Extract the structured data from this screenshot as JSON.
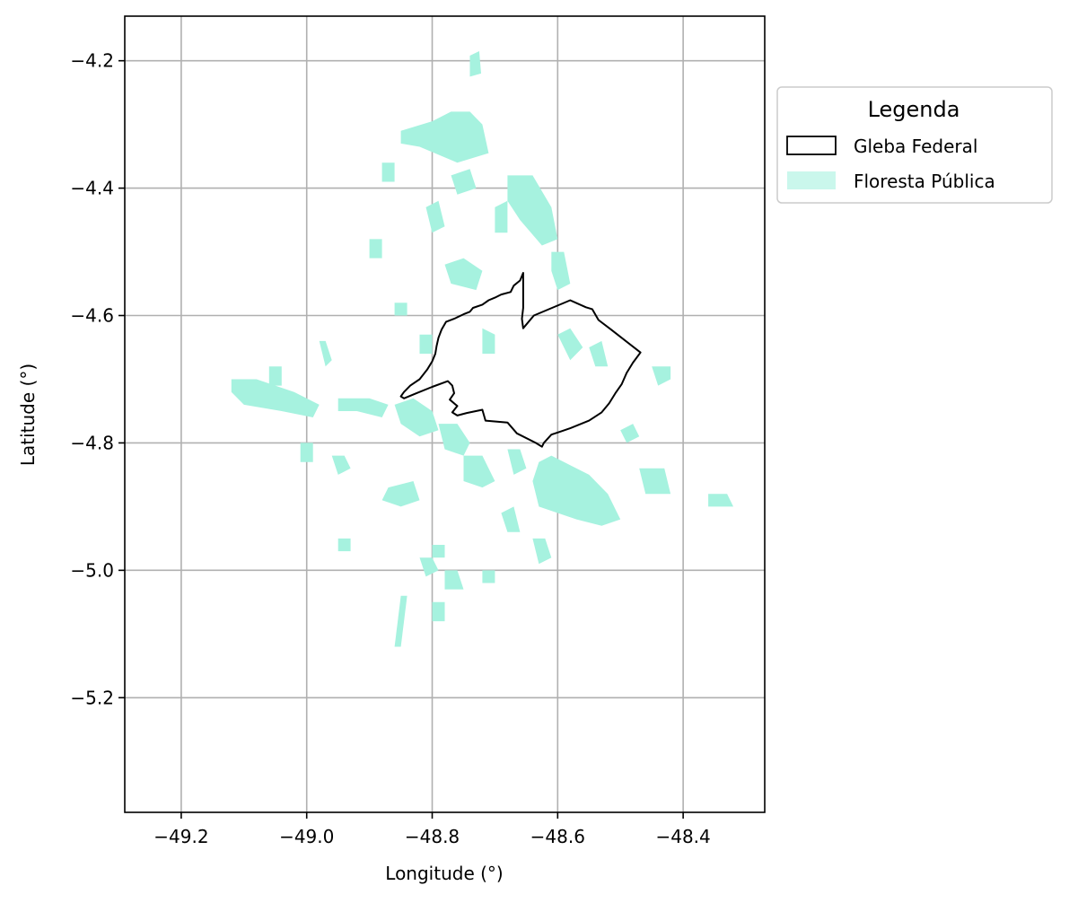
{
  "chart_data": {
    "type": "map",
    "xlabel": "Longitude (°)",
    "ylabel": "Latitude (°)",
    "xlim": [
      -49.29,
      -48.27
    ],
    "ylim": [
      -5.38,
      -4.13
    ],
    "xticks": [
      -49.2,
      -49.0,
      -48.8,
      -48.6,
      -48.4
    ],
    "yticks": [
      -4.2,
      -4.4,
      -4.6,
      -4.8,
      -5.0,
      -5.2
    ],
    "grid": true,
    "legend": {
      "title": "Legenda",
      "placement": "outside-right-top",
      "entries": [
        {
          "label": "Gleba Federal",
          "style": "outline",
          "color": "#000000"
        },
        {
          "label": "Floresta Pública",
          "style": "fill",
          "color": "#a6f2df"
        }
      ]
    },
    "series": [
      {
        "name": "Gleba Federal",
        "kind": "polygon-outline",
        "coordinates": [
          [
            -48.655,
            -4.533
          ],
          [
            -48.66,
            -4.545
          ],
          [
            -48.67,
            -4.553
          ],
          [
            -48.675,
            -4.563
          ],
          [
            -48.69,
            -4.567
          ],
          [
            -48.7,
            -4.572
          ],
          [
            -48.71,
            -4.576
          ],
          [
            -48.72,
            -4.583
          ],
          [
            -48.735,
            -4.588
          ],
          [
            -48.74,
            -4.594
          ],
          [
            -48.75,
            -4.598
          ],
          [
            -48.765,
            -4.605
          ],
          [
            -48.778,
            -4.61
          ],
          [
            -48.785,
            -4.622
          ],
          [
            -48.79,
            -4.635
          ],
          [
            -48.793,
            -4.648
          ],
          [
            -48.795,
            -4.66
          ],
          [
            -48.8,
            -4.672
          ],
          [
            -48.808,
            -4.685
          ],
          [
            -48.82,
            -4.7
          ],
          [
            -48.835,
            -4.71
          ],
          [
            -48.845,
            -4.72
          ],
          [
            -48.85,
            -4.727
          ],
          [
            -48.845,
            -4.73
          ],
          [
            -48.825,
            -4.722
          ],
          [
            -48.8,
            -4.712
          ],
          [
            -48.775,
            -4.703
          ],
          [
            -48.768,
            -4.71
          ],
          [
            -48.765,
            -4.722
          ],
          [
            -48.772,
            -4.732
          ],
          [
            -48.76,
            -4.742
          ],
          [
            -48.768,
            -4.752
          ],
          [
            -48.76,
            -4.757
          ],
          [
            -48.745,
            -4.753
          ],
          [
            -48.72,
            -4.748
          ],
          [
            -48.715,
            -4.765
          ],
          [
            -48.68,
            -4.768
          ],
          [
            -48.665,
            -4.785
          ],
          [
            -48.635,
            -4.8
          ],
          [
            -48.625,
            -4.806
          ],
          [
            -48.622,
            -4.8
          ],
          [
            -48.61,
            -4.787
          ],
          [
            -48.595,
            -4.782
          ],
          [
            -48.58,
            -4.777
          ],
          [
            -48.55,
            -4.765
          ],
          [
            -48.53,
            -4.752
          ],
          [
            -48.518,
            -4.738
          ],
          [
            -48.508,
            -4.722
          ],
          [
            -48.498,
            -4.708
          ],
          [
            -48.49,
            -4.69
          ],
          [
            -48.48,
            -4.674
          ],
          [
            -48.468,
            -4.658
          ],
          [
            -48.515,
            -4.622
          ],
          [
            -48.535,
            -4.607
          ],
          [
            -48.545,
            -4.59
          ],
          [
            -48.555,
            -4.587
          ],
          [
            -48.58,
            -4.576
          ],
          [
            -48.638,
            -4.6
          ],
          [
            -48.655,
            -4.62
          ],
          [
            -48.657,
            -4.605
          ],
          [
            -48.655,
            -4.588
          ],
          [
            -48.655,
            -4.533
          ]
        ]
      },
      {
        "name": "Floresta Pública",
        "kind": "polygon-fill",
        "polygons": [
          [
            [
              -48.74,
              -4.192
            ],
            [
              -48.725,
              -4.185
            ],
            [
              -48.722,
              -4.22
            ],
            [
              -48.74,
              -4.225
            ]
          ],
          [
            [
              -48.85,
              -4.31
            ],
            [
              -48.8,
              -4.295
            ],
            [
              -48.77,
              -4.28
            ],
            [
              -48.74,
              -4.28
            ],
            [
              -48.72,
              -4.3
            ],
            [
              -48.71,
              -4.345
            ],
            [
              -48.76,
              -4.36
            ],
            [
              -48.82,
              -4.335
            ],
            [
              -48.85,
              -4.33
            ]
          ],
          [
            [
              -48.68,
              -4.38
            ],
            [
              -48.64,
              -4.38
            ],
            [
              -48.61,
              -4.43
            ],
            [
              -48.6,
              -4.48
            ],
            [
              -48.625,
              -4.49
            ],
            [
              -48.66,
              -4.45
            ],
            [
              -48.68,
              -4.42
            ]
          ],
          [
            [
              -48.61,
              -4.5
            ],
            [
              -48.59,
              -4.5
            ],
            [
              -48.58,
              -4.55
            ],
            [
              -48.6,
              -4.56
            ],
            [
              -48.61,
              -4.53
            ]
          ],
          [
            [
              -48.78,
              -4.52
            ],
            [
              -48.75,
              -4.51
            ],
            [
              -48.72,
              -4.53
            ],
            [
              -48.73,
              -4.56
            ],
            [
              -48.77,
              -4.55
            ]
          ],
          [
            [
              -48.98,
              -4.64
            ],
            [
              -48.97,
              -4.64
            ],
            [
              -48.96,
              -4.67
            ],
            [
              -48.97,
              -4.68
            ]
          ],
          [
            [
              -48.72,
              -4.62
            ],
            [
              -48.7,
              -4.63
            ],
            [
              -48.7,
              -4.66
            ],
            [
              -48.72,
              -4.66
            ]
          ],
          [
            [
              -48.6,
              -4.63
            ],
            [
              -48.58,
              -4.62
            ],
            [
              -48.56,
              -4.65
            ],
            [
              -48.58,
              -4.67
            ]
          ],
          [
            [
              -48.55,
              -4.65
            ],
            [
              -48.53,
              -4.64
            ],
            [
              -48.52,
              -4.68
            ],
            [
              -48.54,
              -4.68
            ]
          ],
          [
            [
              -49.12,
              -4.7
            ],
            [
              -49.08,
              -4.7
            ],
            [
              -49.02,
              -4.72
            ],
            [
              -48.98,
              -4.74
            ],
            [
              -48.99,
              -4.76
            ],
            [
              -49.04,
              -4.75
            ],
            [
              -49.1,
              -4.74
            ],
            [
              -49.12,
              -4.72
            ]
          ],
          [
            [
              -48.95,
              -4.73
            ],
            [
              -48.9,
              -4.73
            ],
            [
              -48.87,
              -4.74
            ],
            [
              -48.88,
              -4.76
            ],
            [
              -48.92,
              -4.75
            ],
            [
              -48.95,
              -4.75
            ]
          ],
          [
            [
              -48.86,
              -4.74
            ],
            [
              -48.83,
              -4.73
            ],
            [
              -48.8,
              -4.75
            ],
            [
              -48.79,
              -4.78
            ],
            [
              -48.82,
              -4.79
            ],
            [
              -48.85,
              -4.77
            ]
          ],
          [
            [
              -48.79,
              -4.77
            ],
            [
              -48.76,
              -4.77
            ],
            [
              -48.74,
              -4.8
            ],
            [
              -48.75,
              -4.82
            ],
            [
              -48.78,
              -4.81
            ]
          ],
          [
            [
              -48.63,
              -4.83
            ],
            [
              -48.61,
              -4.82
            ],
            [
              -48.55,
              -4.85
            ],
            [
              -48.52,
              -4.88
            ],
            [
              -48.5,
              -4.92
            ],
            [
              -48.53,
              -4.93
            ],
            [
              -48.57,
              -4.92
            ],
            [
              -48.6,
              -4.91
            ],
            [
              -48.63,
              -4.9
            ],
            [
              -48.64,
              -4.86
            ]
          ],
          [
            [
              -48.68,
              -4.81
            ],
            [
              -48.66,
              -4.81
            ],
            [
              -48.65,
              -4.84
            ],
            [
              -48.67,
              -4.85
            ]
          ],
          [
            [
              -48.75,
              -4.82
            ],
            [
              -48.72,
              -4.82
            ],
            [
              -48.7,
              -4.86
            ],
            [
              -48.72,
              -4.87
            ],
            [
              -48.75,
              -4.86
            ]
          ],
          [
            [
              -48.87,
              -4.87
            ],
            [
              -48.83,
              -4.86
            ],
            [
              -48.82,
              -4.89
            ],
            [
              -48.85,
              -4.9
            ],
            [
              -48.88,
              -4.89
            ]
          ],
          [
            [
              -48.69,
              -4.91
            ],
            [
              -48.67,
              -4.9
            ],
            [
              -48.66,
              -4.94
            ],
            [
              -48.68,
              -4.94
            ]
          ],
          [
            [
              -48.47,
              -4.84
            ],
            [
              -48.43,
              -4.84
            ],
            [
              -48.42,
              -4.88
            ],
            [
              -48.46,
              -4.88
            ]
          ],
          [
            [
              -48.36,
              -4.88
            ],
            [
              -48.33,
              -4.88
            ],
            [
              -48.32,
              -4.9
            ],
            [
              -48.36,
              -4.9
            ]
          ],
          [
            [
              -48.78,
              -5.0
            ],
            [
              -48.76,
              -5.0
            ],
            [
              -48.75,
              -5.03
            ],
            [
              -48.78,
              -5.03
            ]
          ],
          [
            [
              -48.64,
              -4.95
            ],
            [
              -48.62,
              -4.95
            ],
            [
              -48.61,
              -4.98
            ],
            [
              -48.63,
              -4.99
            ]
          ],
          [
            [
              -48.8,
              -5.05
            ],
            [
              -48.78,
              -5.05
            ],
            [
              -48.78,
              -5.08
            ],
            [
              -48.8,
              -5.08
            ]
          ],
          [
            [
              -48.95,
              -4.95
            ],
            [
              -48.93,
              -4.95
            ],
            [
              -48.93,
              -4.97
            ],
            [
              -48.95,
              -4.97
            ]
          ],
          [
            [
              -48.8,
              -4.96
            ],
            [
              -48.78,
              -4.96
            ],
            [
              -48.78,
              -4.98
            ],
            [
              -48.8,
              -4.98
            ]
          ],
          [
            [
              -48.81,
              -4.43
            ],
            [
              -48.79,
              -4.42
            ],
            [
              -48.78,
              -4.46
            ],
            [
              -48.8,
              -4.47
            ]
          ],
          [
            [
              -48.7,
              -4.43
            ],
            [
              -48.68,
              -4.42
            ],
            [
              -48.68,
              -4.47
            ],
            [
              -48.7,
              -4.47
            ]
          ],
          [
            [
              -48.77,
              -4.38
            ],
            [
              -48.74,
              -4.37
            ],
            [
              -48.73,
              -4.4
            ],
            [
              -48.76,
              -4.41
            ]
          ],
          [
            [
              -48.88,
              -4.36
            ],
            [
              -48.86,
              -4.36
            ],
            [
              -48.86,
              -4.39
            ],
            [
              -48.88,
              -4.39
            ]
          ],
          [
            [
              -48.9,
              -4.48
            ],
            [
              -48.88,
              -4.48
            ],
            [
              -48.88,
              -4.51
            ],
            [
              -48.9,
              -4.51
            ]
          ],
          [
            [
              -48.82,
              -4.63
            ],
            [
              -48.8,
              -4.63
            ],
            [
              -48.8,
              -4.66
            ],
            [
              -48.82,
              -4.66
            ]
          ],
          [
            [
              -48.86,
              -4.58
            ],
            [
              -48.84,
              -4.58
            ],
            [
              -48.84,
              -4.6
            ],
            [
              -48.86,
              -4.6
            ]
          ],
          [
            [
              -49.06,
              -4.68
            ],
            [
              -49.04,
              -4.68
            ],
            [
              -49.04,
              -4.71
            ],
            [
              -49.06,
              -4.71
            ]
          ],
          [
            [
              -48.96,
              -4.82
            ],
            [
              -48.94,
              -4.82
            ],
            [
              -48.93,
              -4.84
            ],
            [
              -48.95,
              -4.85
            ]
          ],
          [
            [
              -48.72,
              -5.0
            ],
            [
              -48.7,
              -5.0
            ],
            [
              -48.7,
              -5.02
            ],
            [
              -48.72,
              -5.02
            ]
          ],
          [
            [
              -48.45,
              -4.68
            ],
            [
              -48.42,
              -4.68
            ],
            [
              -48.42,
              -4.7
            ],
            [
              -48.44,
              -4.71
            ]
          ],
          [
            [
              -48.5,
              -4.78
            ],
            [
              -48.48,
              -4.77
            ],
            [
              -48.47,
              -4.79
            ],
            [
              -48.49,
              -4.8
            ]
          ],
          [
            [
              -49.01,
              -4.8
            ],
            [
              -48.99,
              -4.8
            ],
            [
              -48.99,
              -4.83
            ],
            [
              -49.01,
              -4.83
            ]
          ],
          [
            [
              -48.82,
              -4.98
            ],
            [
              -48.8,
              -4.98
            ],
            [
              -48.79,
              -5.0
            ],
            [
              -48.81,
              -5.01
            ]
          ],
          [
            [
              -48.85,
              -5.04
            ],
            [
              -48.84,
              -5.04
            ],
            [
              -48.85,
              -5.12
            ],
            [
              -48.86,
              -5.12
            ]
          ]
        ]
      }
    ]
  }
}
